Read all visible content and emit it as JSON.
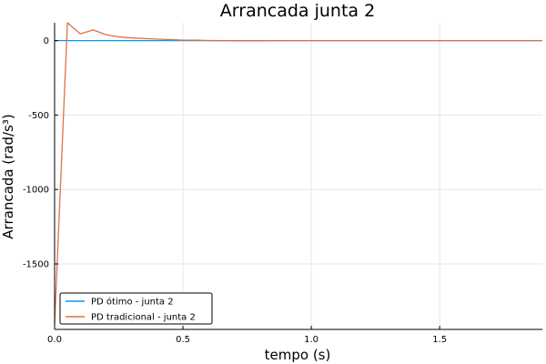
{
  "chart_data": {
    "type": "line",
    "title": "Arrancada junta 2",
    "xlabel": "tempo (s)",
    "ylabel": "Arrancada (rad/s³)",
    "xlim": [
      0,
      1.9
    ],
    "ylim": [
      -1940,
      120
    ],
    "xticks": [
      0.0,
      0.5,
      1.0,
      1.5
    ],
    "xtick_labels": [
      "0.0",
      "0.5",
      "1.0",
      "1.5"
    ],
    "yticks": [
      0,
      -500,
      -1000,
      -1500
    ],
    "ytick_labels": [
      "0",
      "-500",
      "-1000",
      "-1500"
    ],
    "grid": true,
    "legend_position": "bottom-left",
    "series": [
      {
        "name": "PD ótimo - junta 2",
        "color": "#009AF9",
        "x": [
          0,
          0.5,
          1.0,
          1.5,
          1.9
        ],
        "y": [
          0,
          0,
          0,
          0,
          0
        ]
      },
      {
        "name": "PD tradicional - junta 2",
        "color": "#E26F46",
        "x": [
          0,
          0.05,
          0.1,
          0.15,
          0.2,
          0.25,
          0.3,
          0.35,
          0.4,
          0.45,
          0.5,
          0.55,
          0.6,
          0.7,
          0.8,
          0.9,
          1.0,
          1.1,
          1.2,
          1.3,
          1.4,
          1.5,
          1.6,
          1.7,
          1.8,
          1.9
        ],
        "y": [
          -1900,
          120,
          45,
          72,
          40,
          25,
          18,
          14,
          10,
          7,
          4,
          3,
          1,
          -1,
          -1,
          0,
          0,
          0,
          0,
          0,
          0,
          0,
          0,
          0,
          0,
          0
        ]
      }
    ]
  }
}
